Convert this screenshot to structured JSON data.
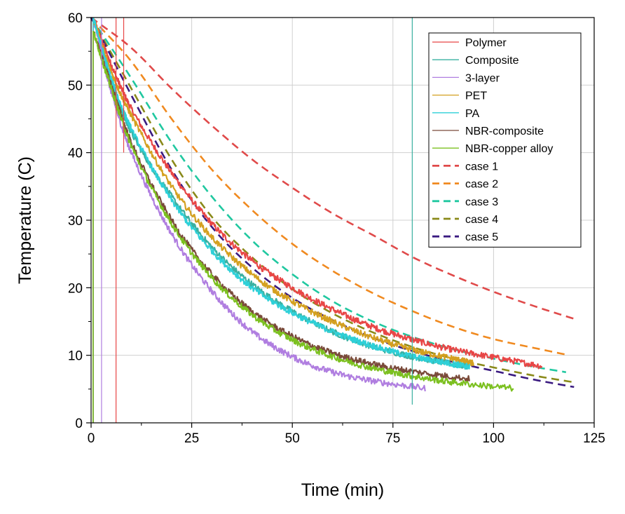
{
  "chart_data": {
    "type": "line",
    "xlabel": "Time (min)",
    "ylabel": "Temperature (C)",
    "xlim": [
      0,
      125
    ],
    "ylim": [
      0,
      60
    ],
    "x_ticks": [
      0,
      25,
      50,
      75,
      100,
      125
    ],
    "y_ticks": [
      0,
      10,
      20,
      30,
      40,
      50,
      60
    ],
    "grid": true,
    "legend_position": "top-right",
    "series": [
      {
        "name": "Polymer",
        "style": "measured",
        "color": "#e84646",
        "x": [
          0.5,
          5,
          10,
          20,
          30,
          40,
          50,
          60,
          70,
          80,
          90,
          100,
          112
        ],
        "y": [
          60,
          53,
          46.5,
          37,
          29.5,
          24,
          20,
          16.8,
          14.2,
          12.3,
          10.8,
          9.7,
          8.4
        ]
      },
      {
        "name": "Composite",
        "style": "measured",
        "color": "#3ab0a0",
        "x": [
          0.5,
          5,
          10,
          20,
          30,
          40,
          50,
          60,
          70,
          80,
          90,
          94
        ],
        "y": [
          60,
          50.5,
          43,
          33.5,
          26,
          20.5,
          16.5,
          13.5,
          11.3,
          9.8,
          8.7,
          8.4
        ]
      },
      {
        "name": "3-layer",
        "style": "measured",
        "color": "#b07ee0",
        "x": [
          0.5,
          5,
          10,
          20,
          30,
          40,
          50,
          60,
          70,
          83
        ],
        "y": [
          60,
          49,
          40,
          28,
          19.5,
          13.5,
          9.8,
          7.5,
          6.2,
          5.1
        ]
      },
      {
        "name": "PET",
        "style": "measured",
        "color": "#d4a020",
        "x": [
          0.5,
          5,
          10,
          20,
          30,
          40,
          50,
          60,
          70,
          80,
          90,
          95
        ],
        "y": [
          60,
          52,
          45.5,
          35,
          27.5,
          22,
          18,
          15,
          12.6,
          10.8,
          9.5,
          8.8
        ]
      },
      {
        "name": "PA",
        "style": "measured",
        "color": "#2ed0d8",
        "x": [
          0.5,
          5,
          10,
          20,
          30,
          40,
          50,
          60,
          70,
          80,
          90,
          94
        ],
        "y": [
          60,
          51,
          43.5,
          33,
          25.5,
          20,
          16.3,
          13.5,
          11.4,
          9.8,
          8.7,
          8.3
        ]
      },
      {
        "name": "NBR-composite",
        "style": "measured",
        "color": "#7a4a3a",
        "x": [
          0.5,
          5,
          10,
          20,
          30,
          40,
          50,
          60,
          70,
          80,
          94
        ],
        "y": [
          58,
          50,
          41.5,
          30,
          22,
          16.5,
          12.8,
          10.3,
          8.7,
          7.6,
          6.5
        ]
      },
      {
        "name": "NBR-copper alloy",
        "style": "measured",
        "color": "#7cc020",
        "x": [
          0.5,
          5,
          10,
          20,
          30,
          40,
          50,
          60,
          70,
          80,
          90,
          105
        ],
        "y": [
          58,
          49.5,
          41,
          29.5,
          21.5,
          16,
          12.3,
          9.8,
          8.1,
          6.9,
          6,
          5.1
        ]
      },
      {
        "name": "case 1",
        "style": "dashed",
        "color": "#e04a4a",
        "x": [
          0,
          10,
          20,
          30,
          40,
          50,
          60,
          70,
          80,
          90,
          100,
          110,
          120
        ],
        "y": [
          60,
          55.5,
          49.5,
          44,
          39,
          34.8,
          31,
          27.8,
          24.5,
          21.8,
          19.4,
          17.3,
          15.4
        ]
      },
      {
        "name": "case 2",
        "style": "dashed",
        "color": "#f08a20",
        "x": [
          0,
          10,
          20,
          30,
          40,
          50,
          60,
          70,
          80,
          90,
          100,
          110,
          118
        ],
        "y": [
          60,
          53.5,
          45,
          37.5,
          31.5,
          26.5,
          22.5,
          19.2,
          16.5,
          14.2,
          12.4,
          11.1,
          10.1
        ]
      },
      {
        "name": "case 3",
        "style": "dashed",
        "color": "#20c8a0",
        "x": [
          0,
          10,
          20,
          30,
          40,
          50,
          60,
          70,
          80,
          90,
          100,
          110,
          118
        ],
        "y": [
          60,
          51,
          41.5,
          33.5,
          27,
          22,
          18,
          15,
          12.7,
          10.9,
          9.5,
          8.3,
          7.5
        ]
      },
      {
        "name": "case 4",
        "style": "dashed",
        "color": "#8a8a1a",
        "x": [
          0,
          10,
          20,
          30,
          40,
          50,
          60,
          70,
          80,
          90,
          100,
          110,
          120
        ],
        "y": [
          60,
          49.5,
          39,
          30.5,
          24.5,
          19.8,
          16.2,
          13.4,
          11.2,
          9.5,
          8.2,
          7,
          6
        ]
      },
      {
        "name": "case 5",
        "style": "dashed",
        "color": "#3a1a80",
        "x": [
          0,
          10,
          20,
          30,
          40,
          50,
          60,
          70,
          80,
          90,
          100,
          110,
          120
        ],
        "y": [
          60,
          48.5,
          37.5,
          29,
          23,
          18.5,
          15.2,
          12.6,
          10.6,
          9,
          7.7,
          6.4,
          5.3
        ]
      }
    ],
    "annotations": [
      {
        "type": "vertical-spike",
        "series": "Composite",
        "x": 79.8,
        "y_from": 2.7,
        "y_to": 60
      },
      {
        "type": "vertical-spike",
        "series": "Polymer",
        "x": 6.2,
        "y_from": 0,
        "y_to": 60
      },
      {
        "type": "vertical-spike",
        "series": "Polymer",
        "x": 8.1,
        "y_from": 40,
        "y_to": 60
      },
      {
        "type": "vertical-spike",
        "series": "3-layer",
        "x": 2.6,
        "y_from": 0,
        "y_to": 60
      }
    ]
  }
}
